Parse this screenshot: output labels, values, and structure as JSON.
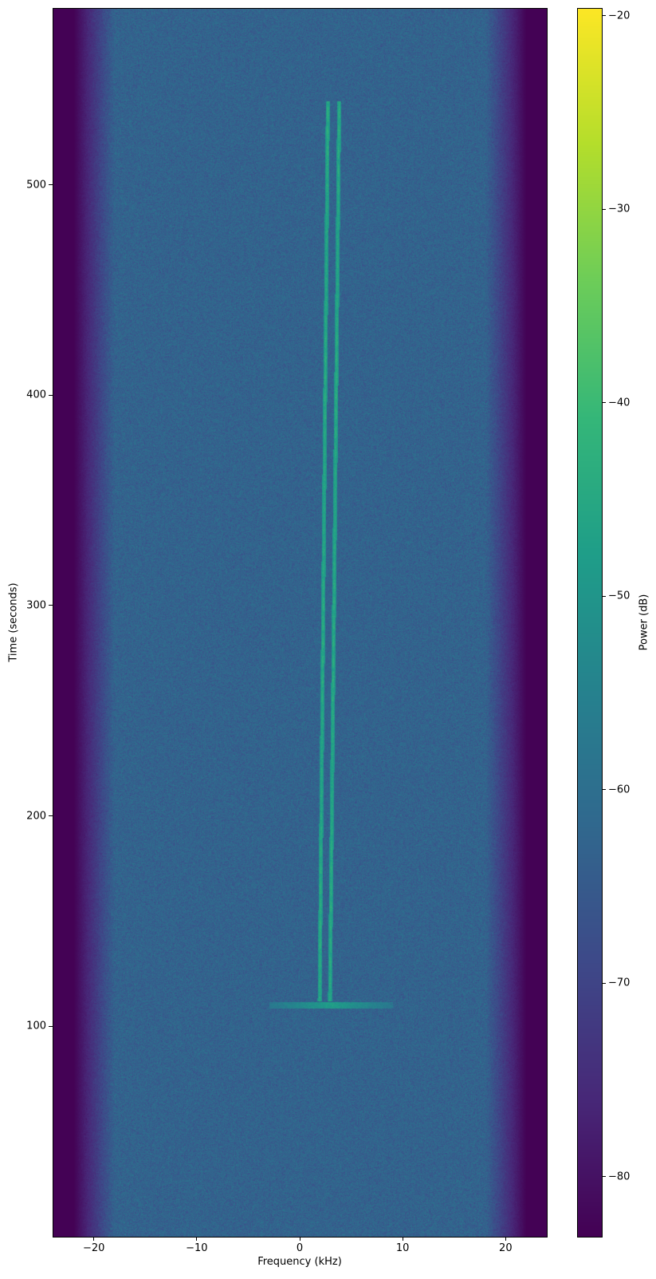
{
  "chart_data": {
    "type": "heatmap",
    "title": "",
    "xlabel": "Frequency (kHz)",
    "ylabel": "Time (seconds)",
    "xlim": [
      -24,
      24
    ],
    "ylim": [
      0,
      584
    ],
    "xticks": [
      -20,
      -10,
      0,
      10,
      20
    ],
    "xtick_labels": [
      "−20",
      "−10",
      "0",
      "10",
      "20"
    ],
    "yticks": [
      100,
      200,
      300,
      400,
      500
    ],
    "ytick_labels": [
      "100",
      "200",
      "300",
      "400",
      "500"
    ],
    "grid": false,
    "colormap": "viridis",
    "colorbar": {
      "label": "Power (dB)",
      "range": [
        -83.1,
        -19.6
      ],
      "ticks": [
        -80,
        -70,
        -60,
        -50,
        -40,
        -30,
        -20
      ],
      "tick_labels": [
        "−80",
        "−70",
        "−60",
        "−50",
        "−40",
        "−30",
        "−20"
      ]
    },
    "noise_floor_db": -63,
    "band_edge_db": -83,
    "passband_khz": [
      -19.5,
      19.5
    ],
    "signals": [
      {
        "kind": "tone",
        "start_time": 112,
        "end_time": 540,
        "freq_start_khz": 1.9,
        "freq_end_khz": 2.7,
        "peak_db": -42
      },
      {
        "kind": "tone",
        "start_time": 112,
        "end_time": 540,
        "freq_start_khz": 2.9,
        "freq_end_khz": 3.8,
        "peak_db": -42
      },
      {
        "kind": "burst",
        "time": 110,
        "freq_range_khz": [
          -3,
          9
        ],
        "peak_db": -48
      }
    ]
  }
}
